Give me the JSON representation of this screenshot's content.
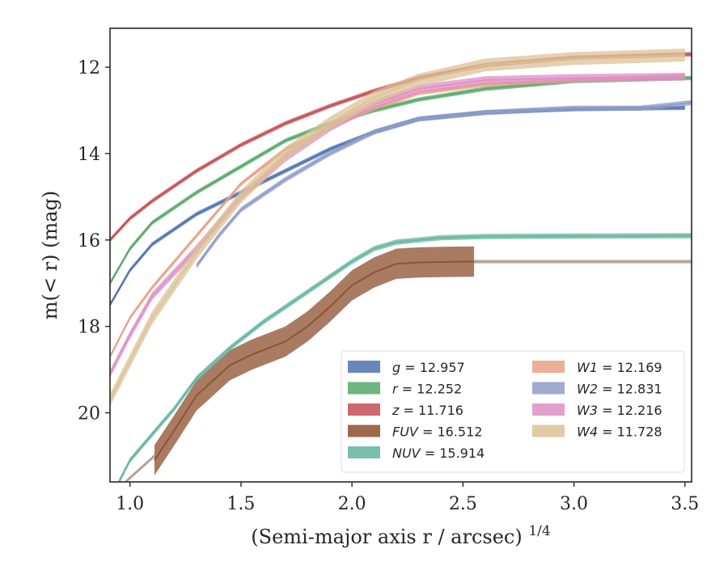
{
  "chart_data": {
    "type": "line",
    "xlabel": "(Semi-major axis r / arcsec)",
    "xlabel_sup": "1/4",
    "ylabel": "m(< r) (mag)",
    "xlim": [
      0.91,
      3.53
    ],
    "ylim": [
      21.6,
      11.1
    ],
    "y_inverted": true,
    "grid": false,
    "legend_placement": "lower-right",
    "x_ticks": [
      {
        "value": 1.0,
        "label": "1.0"
      },
      {
        "value": 1.5,
        "label": "1.5"
      },
      {
        "value": 2.0,
        "label": "2.0"
      },
      {
        "value": 2.5,
        "label": "2.5"
      },
      {
        "value": 3.0,
        "label": "3.0"
      },
      {
        "value": 3.5,
        "label": "3.5"
      }
    ],
    "y_ticks": [
      {
        "value": 12,
        "label": "12"
      },
      {
        "value": 14,
        "label": "14"
      },
      {
        "value": 16,
        "label": "16"
      },
      {
        "value": 18,
        "label": "18"
      },
      {
        "value": 20,
        "label": "20"
      }
    ],
    "series": [
      {
        "name": "g = 12.957",
        "legend_main": "g",
        "legend_value": "12.957",
        "color": "#4c72b0",
        "band": 0.05,
        "x": [
          0.91,
          1.0,
          1.1,
          1.3,
          1.5,
          1.7,
          1.9,
          2.1,
          2.3,
          2.6,
          3.0,
          3.5
        ],
        "y": [
          17.5,
          16.7,
          16.1,
          15.4,
          14.9,
          14.4,
          13.9,
          13.5,
          13.2,
          13.05,
          12.97,
          12.94
        ]
      },
      {
        "name": "r = 12.252",
        "legend_main": "r",
        "legend_value": "12.252",
        "color": "#55a868",
        "band": 0.05,
        "x": [
          0.91,
          1.0,
          1.1,
          1.3,
          1.5,
          1.7,
          1.9,
          2.1,
          2.3,
          2.6,
          3.0,
          3.53
        ],
        "y": [
          17.0,
          16.2,
          15.6,
          14.9,
          14.3,
          13.7,
          13.3,
          13.0,
          12.75,
          12.5,
          12.32,
          12.25
        ]
      },
      {
        "name": "z = 11.716",
        "legend_main": "z",
        "legend_value": "11.716",
        "color": "#c44e52",
        "band": 0.05,
        "x": [
          0.91,
          1.0,
          1.1,
          1.3,
          1.5,
          1.7,
          1.9,
          2.1,
          2.3,
          2.6,
          3.0,
          3.53
        ],
        "y": [
          16.0,
          15.5,
          15.1,
          14.4,
          13.8,
          13.3,
          12.9,
          12.55,
          12.25,
          11.95,
          11.78,
          11.7
        ]
      },
      {
        "name": "FUV = 16.512",
        "legend_main": "FUV",
        "legend_value": "16.512",
        "color": "#8c4f2e",
        "band": 0.35,
        "x": [
          1.11,
          1.2,
          1.3,
          1.45,
          1.55,
          1.7,
          1.8,
          1.9,
          2.0,
          2.1,
          2.2,
          2.3,
          2.4,
          2.55
        ],
        "y": [
          21.1,
          20.4,
          19.6,
          18.9,
          18.65,
          18.35,
          18.0,
          17.55,
          17.05,
          16.75,
          16.55,
          16.52,
          16.51,
          16.5
        ]
      },
      {
        "name": "FUV tail",
        "color": "#b39b8e",
        "band": 0.04,
        "x": [
          2.55,
          3.0,
          3.53
        ],
        "y": [
          16.5,
          16.5,
          16.5
        ]
      },
      {
        "name": "FUV start",
        "color": "#b39b8e",
        "band": 0.04,
        "x": [
          0.98,
          1.11
        ],
        "y": [
          21.6,
          21.0
        ]
      },
      {
        "name": "NUV = 15.914",
        "legend_main": "NUV",
        "legend_value": "15.914",
        "color": "#64b5a0",
        "band": 0.06,
        "x": [
          0.95,
          1.0,
          1.1,
          1.2,
          1.3,
          1.45,
          1.6,
          1.8,
          2.0,
          2.1,
          2.2,
          2.4,
          2.6,
          3.0,
          3.53
        ],
        "y": [
          21.6,
          21.1,
          20.5,
          19.9,
          19.2,
          18.5,
          17.9,
          17.2,
          16.5,
          16.2,
          16.05,
          15.95,
          15.92,
          15.91,
          15.9
        ]
      },
      {
        "name": "W1 = 12.169",
        "legend_main": "W1",
        "legend_value": "12.169",
        "color": "#e8a084",
        "band": 0.05,
        "x": [
          0.91,
          1.0,
          1.1,
          1.3,
          1.5,
          1.7,
          1.9,
          2.1,
          2.3,
          2.6,
          3.0,
          3.5
        ],
        "y": [
          18.7,
          17.8,
          17.1,
          15.9,
          14.7,
          13.9,
          13.4,
          12.95,
          12.6,
          12.4,
          12.3,
          12.2
        ]
      },
      {
        "name": "W2 = 12.831",
        "legend_main": "W2",
        "legend_value": "12.831",
        "color": "#8e9cc8",
        "band": 0.06,
        "x": [
          1.3,
          1.4,
          1.5,
          1.7,
          1.9,
          2.1,
          2.3,
          2.6,
          3.0,
          3.3,
          3.53
        ],
        "y": [
          16.6,
          15.9,
          15.3,
          14.6,
          14.0,
          13.5,
          13.2,
          13.05,
          12.95,
          12.95,
          12.82
        ]
      },
      {
        "name": "W3 = 12.216",
        "legend_main": "W3",
        "legend_value": "12.216",
        "color": "#dd8fc4",
        "band": 0.09,
        "x": [
          0.91,
          1.0,
          1.1,
          1.3,
          1.5,
          1.7,
          1.9,
          2.1,
          2.3,
          2.6,
          3.0,
          3.5
        ],
        "y": [
          19.1,
          18.2,
          17.3,
          16.2,
          15.0,
          14.1,
          13.4,
          12.85,
          12.5,
          12.3,
          12.25,
          12.22
        ]
      },
      {
        "name": "W4 = 11.728",
        "legend_main": "W4",
        "legend_value": "11.728",
        "color": "#dcc197",
        "band": 0.15,
        "x": [
          0.91,
          1.0,
          1.1,
          1.3,
          1.5,
          1.7,
          1.9,
          2.1,
          2.3,
          2.6,
          3.0,
          3.5
        ],
        "y": [
          19.7,
          18.8,
          17.8,
          16.3,
          15.0,
          14.0,
          13.3,
          12.7,
          12.3,
          11.95,
          11.8,
          11.72
        ]
      }
    ],
    "legend": [
      {
        "main": "g",
        "value": "12.957",
        "color": "#4c72b0"
      },
      {
        "main": "r",
        "value": "12.252",
        "color": "#55a868"
      },
      {
        "main": "z",
        "value": "11.716",
        "color": "#c44e52"
      },
      {
        "main": "FUV",
        "value": "16.512",
        "color": "#8c4f2e"
      },
      {
        "main": "NUV",
        "value": "15.914",
        "color": "#64b5a0"
      },
      {
        "main": "W1",
        "value": "12.169",
        "color": "#e8a084"
      },
      {
        "main": "W2",
        "value": "12.831",
        "color": "#8e9cc8"
      },
      {
        "main": "W3",
        "value": "12.216",
        "color": "#dd8fc4"
      },
      {
        "main": "W4",
        "value": "11.728",
        "color": "#dcc197"
      }
    ]
  }
}
